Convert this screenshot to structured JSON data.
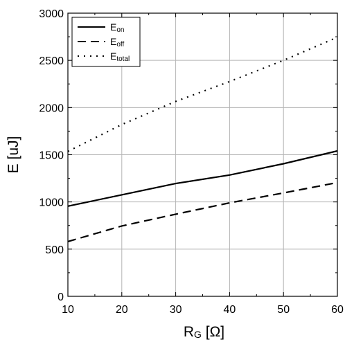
{
  "chart_data": {
    "type": "line",
    "xlabel": {
      "main": "R",
      "sub": "G",
      "unit": " [Ω]"
    },
    "ylabel": "E [uJ]",
    "xlim": [
      10,
      60
    ],
    "ylim": [
      0,
      3000
    ],
    "x_ticks": [
      10,
      20,
      30,
      40,
      50,
      60
    ],
    "y_ticks": [
      0,
      500,
      1000,
      1500,
      2000,
      2500,
      3000
    ],
    "x_minor_step": 5,
    "y_minor_step": 250,
    "grid": true,
    "legend_position": "top-left",
    "series": [
      {
        "name": "Eon",
        "legend_main": "E",
        "legend_sub": "on",
        "dash": "solid",
        "x": [
          10,
          20,
          30,
          40,
          50,
          60
        ],
        "y": [
          955,
          1075,
          1195,
          1285,
          1405,
          1540
        ]
      },
      {
        "name": "Eoff",
        "legend_main": "E",
        "legend_sub": "off",
        "dash": "dashed",
        "x": [
          10,
          20,
          30,
          40,
          50,
          60
        ],
        "y": [
          580,
          745,
          870,
          990,
          1095,
          1205
        ]
      },
      {
        "name": "Etotal",
        "legend_main": "E",
        "legend_sub": "total",
        "dash": "dotted",
        "x": [
          10,
          20,
          30,
          40,
          50,
          60
        ],
        "y": [
          1535,
          1820,
          2065,
          2275,
          2500,
          2745
        ]
      }
    ]
  }
}
